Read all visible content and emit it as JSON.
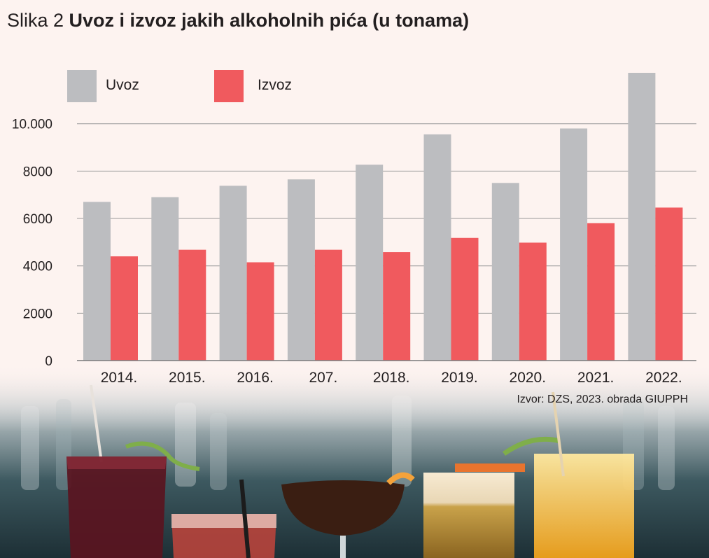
{
  "title": {
    "lead": "Slika 2 ",
    "main": "Uvoz i izvoz jakih alkoholnih pića (u tonama)"
  },
  "source": "Izvor: DZS, 2023. obrada GIUPPH",
  "colors": {
    "uvoz": "#bcbdc0",
    "izvoz": "#f05a5e",
    "grid": "#9a9a9a",
    "background": "#fdf3f0"
  },
  "chart_data": {
    "type": "bar",
    "categories": [
      "2014.",
      "2015.",
      "2016.",
      "207.",
      "2018.",
      "2019.",
      "2020.",
      "2021.",
      "2022."
    ],
    "series": [
      {
        "name": "Uvoz",
        "values": [
          6700,
          6900,
          7380,
          7650,
          8270,
          9550,
          7500,
          9800,
          12150
        ]
      },
      {
        "name": "Izvoz",
        "values": [
          4400,
          4680,
          4150,
          4680,
          4580,
          5180,
          4980,
          5800,
          6460
        ]
      }
    ],
    "yticks": [
      {
        "value": 0,
        "label": "0"
      },
      {
        "value": 2000,
        "label": "2000"
      },
      {
        "value": 4000,
        "label": "4000"
      },
      {
        "value": 6000,
        "label": "6000"
      },
      {
        "value": 8000,
        "label": "8000"
      },
      {
        "value": 10000,
        "label": "10.000"
      }
    ],
    "ylim": [
      0,
      12150
    ],
    "legend_position": "top-left",
    "grid": true
  }
}
